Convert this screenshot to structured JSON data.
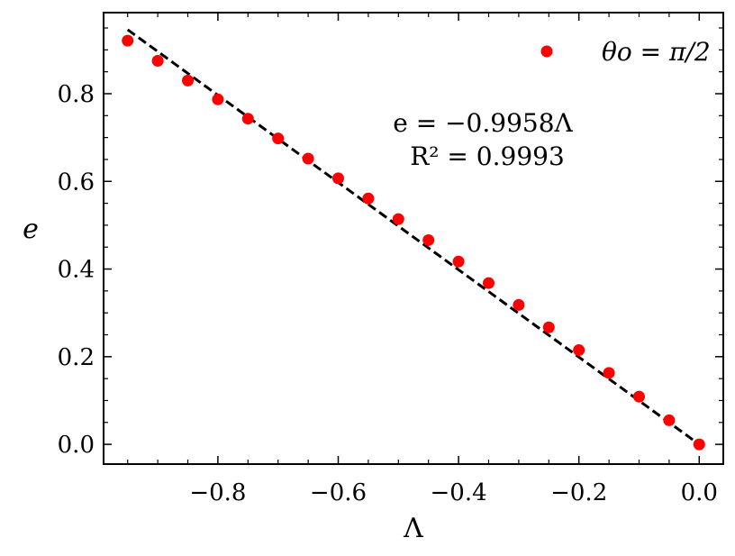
{
  "chart_data": {
    "type": "scatter",
    "xlabel": "Λ",
    "ylabel": "e",
    "xlim": [
      -0.99,
      0.04
    ],
    "ylim": [
      -0.045,
      0.985
    ],
    "xticks": [
      -0.8,
      -0.6,
      -0.4,
      -0.2,
      0.0
    ],
    "xtick_labels": [
      "−0.8",
      "−0.6",
      "−0.4",
      "−0.2",
      "0.0"
    ],
    "yticks": [
      0.0,
      0.2,
      0.4,
      0.6,
      0.8
    ],
    "ytick_labels": [
      "0.0",
      "0.2",
      "0.4",
      "0.6",
      "0.8"
    ],
    "grid": false,
    "legend_position": "top-right",
    "series": [
      {
        "name": "θo = π/2",
        "kind": "points",
        "color": "#ff0000",
        "x": [
          -0.95,
          -0.9,
          -0.85,
          -0.8,
          -0.75,
          -0.7,
          -0.65,
          -0.6,
          -0.55,
          -0.5,
          -0.45,
          -0.4,
          -0.35,
          -0.3,
          -0.25,
          -0.2,
          -0.15,
          -0.1,
          -0.05,
          0.0
        ],
        "y": [
          0.921,
          0.875,
          0.83,
          0.787,
          0.743,
          0.698,
          0.652,
          0.607,
          0.561,
          0.514,
          0.466,
          0.417,
          0.368,
          0.318,
          0.267,
          0.215,
          0.163,
          0.109,
          0.055,
          0.0
        ]
      },
      {
        "name": "",
        "kind": "fit",
        "color": "#000000",
        "style": "dashed",
        "slope": -0.9958,
        "x_range": [
          -0.95,
          0.0
        ]
      }
    ],
    "annotations": [
      "e = −0.9958Λ",
      "R² = 0.9993"
    ]
  }
}
